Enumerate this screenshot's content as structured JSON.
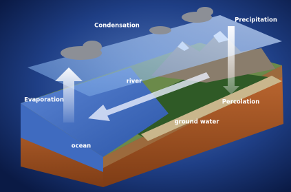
{
  "labels": [
    "Condensation",
    "Precipitation",
    "river",
    "Evaporation",
    "Percolation",
    "ground water",
    "ocean"
  ]
}
